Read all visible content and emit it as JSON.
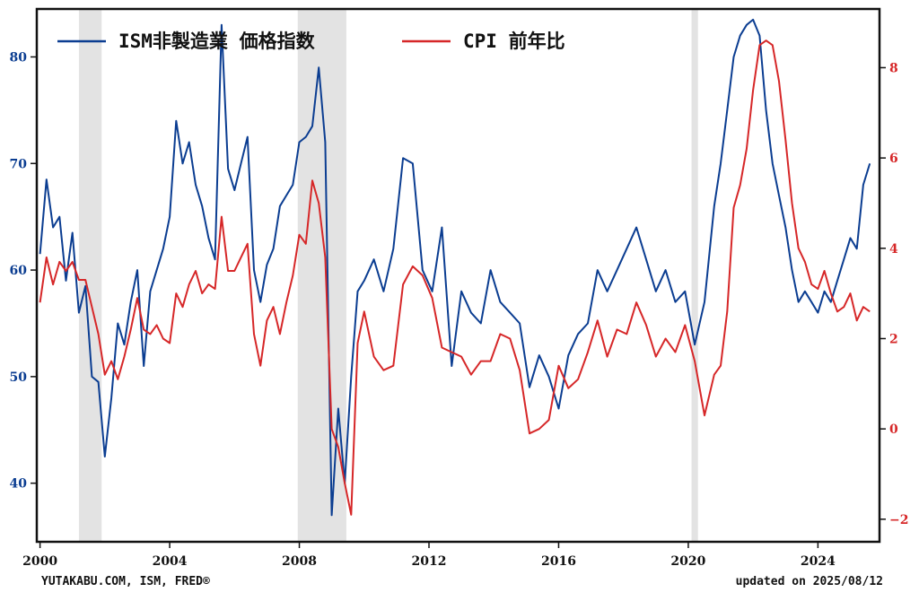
{
  "chart_data": {
    "type": "line",
    "title": "",
    "xlabel": "",
    "ylabel": "",
    "xlim": [
      1999.9,
      2025.9
    ],
    "x_ticks": [
      2000,
      2004,
      2008,
      2012,
      2016,
      2020,
      2024
    ],
    "y_left_lim": [
      34.5,
      84.5
    ],
    "y_left_ticks": [
      40,
      50,
      60,
      70,
      80
    ],
    "y_right_lim": [
      -2.5,
      9.3
    ],
    "y_right_ticks": [
      -2,
      0,
      2,
      4,
      6,
      8
    ],
    "grid": false,
    "legend_position": "top-left",
    "recessions": [
      [
        2001.2,
        2001.9
      ],
      [
        2007.95,
        2009.45
      ],
      [
        2020.1,
        2020.3
      ]
    ],
    "series": [
      {
        "name": "ISM非製造業 価格指数",
        "axis": "left",
        "color": "#0b3d91",
        "x": [
          2000.0,
          2000.2,
          2000.4,
          2000.6,
          2000.8,
          2001.0,
          2001.2,
          2001.4,
          2001.6,
          2001.8,
          2002.0,
          2002.2,
          2002.4,
          2002.6,
          2002.8,
          2003.0,
          2003.2,
          2003.4,
          2003.6,
          2003.8,
          2004.0,
          2004.2,
          2004.4,
          2004.6,
          2004.8,
          2005.0,
          2005.2,
          2005.4,
          2005.6,
          2005.8,
          2006.0,
          2006.2,
          2006.4,
          2006.6,
          2006.8,
          2007.0,
          2007.2,
          2007.4,
          2007.6,
          2007.8,
          2008.0,
          2008.2,
          2008.4,
          2008.6,
          2008.8,
          2009.0,
          2009.2,
          2009.4,
          2009.6,
          2009.8,
          2010.0,
          2010.3,
          2010.6,
          2010.9,
          2011.2,
          2011.5,
          2011.8,
          2012.1,
          2012.4,
          2012.7,
          2013.0,
          2013.3,
          2013.6,
          2013.9,
          2014.2,
          2014.5,
          2014.8,
          2015.1,
          2015.4,
          2015.7,
          2016.0,
          2016.3,
          2016.6,
          2016.9,
          2017.2,
          2017.5,
          2017.8,
          2018.1,
          2018.4,
          2018.7,
          2019.0,
          2019.3,
          2019.6,
          2019.9,
          2020.2,
          2020.5,
          2020.8,
          2021.0,
          2021.2,
          2021.4,
          2021.6,
          2021.8,
          2022.0,
          2022.2,
          2022.4,
          2022.6,
          2022.8,
          2023.0,
          2023.2,
          2023.4,
          2023.6,
          2023.8,
          2024.0,
          2024.2,
          2024.4,
          2024.6,
          2024.8,
          2025.0,
          2025.2,
          2025.4,
          2025.6
        ],
        "values": [
          61.5,
          68.5,
          64.0,
          65.0,
          59.0,
          63.5,
          56.0,
          58.5,
          50.0,
          49.5,
          42.5,
          48.0,
          55.0,
          53.0,
          57.0,
          60.0,
          51.0,
          58.0,
          60.0,
          62.0,
          65.0,
          74.0,
          70.0,
          72.0,
          68.0,
          66.0,
          63.0,
          61.0,
          83.0,
          69.5,
          67.5,
          70.0,
          72.5,
          60.0,
          57.0,
          60.5,
          62.0,
          66.0,
          67.0,
          68.0,
          72.0,
          72.5,
          73.5,
          79.0,
          72.0,
          37.0,
          47.0,
          40.0,
          50.0,
          58.0,
          59.0,
          61.0,
          58.0,
          62.0,
          70.5,
          70.0,
          60.0,
          58.0,
          64.0,
          51.0,
          58.0,
          56.0,
          55.0,
          60.0,
          57.0,
          56.0,
          55.0,
          49.0,
          52.0,
          50.0,
          47.0,
          52.0,
          54.0,
          55.0,
          60.0,
          58.0,
          60.0,
          62.0,
          64.0,
          61.0,
          58.0,
          60.0,
          57.0,
          58.0,
          53.0,
          57.0,
          66.0,
          70.0,
          75.0,
          80.0,
          82.0,
          83.0,
          83.5,
          82.0,
          75.0,
          70.0,
          67.0,
          64.0,
          60.0,
          57.0,
          58.0,
          57.0,
          56.0,
          58.0,
          57.0,
          59.0,
          61.0,
          63.0,
          62.0,
          68.0,
          70.0
        ]
      },
      {
        "name": "CPI 前年比",
        "axis": "right",
        "color": "#d62728",
        "x": [
          2000.0,
          2000.2,
          2000.4,
          2000.6,
          2000.8,
          2001.0,
          2001.2,
          2001.4,
          2001.6,
          2001.8,
          2002.0,
          2002.2,
          2002.4,
          2002.6,
          2002.8,
          2003.0,
          2003.2,
          2003.4,
          2003.6,
          2003.8,
          2004.0,
          2004.2,
          2004.4,
          2004.6,
          2004.8,
          2005.0,
          2005.2,
          2005.4,
          2005.6,
          2005.8,
          2006.0,
          2006.2,
          2006.4,
          2006.6,
          2006.8,
          2007.0,
          2007.2,
          2007.4,
          2007.6,
          2007.8,
          2008.0,
          2008.2,
          2008.4,
          2008.6,
          2008.8,
          2009.0,
          2009.2,
          2009.4,
          2009.6,
          2009.8,
          2010.0,
          2010.3,
          2010.6,
          2010.9,
          2011.2,
          2011.5,
          2011.8,
          2012.1,
          2012.4,
          2012.7,
          2013.0,
          2013.3,
          2013.6,
          2013.9,
          2014.2,
          2014.5,
          2014.8,
          2015.1,
          2015.4,
          2015.7,
          2016.0,
          2016.3,
          2016.6,
          2016.9,
          2017.2,
          2017.5,
          2017.8,
          2018.1,
          2018.4,
          2018.7,
          2019.0,
          2019.3,
          2019.6,
          2019.9,
          2020.2,
          2020.5,
          2020.8,
          2021.0,
          2021.2,
          2021.4,
          2021.6,
          2021.8,
          2022.0,
          2022.2,
          2022.4,
          2022.6,
          2022.8,
          2023.0,
          2023.2,
          2023.4,
          2023.6,
          2023.8,
          2024.0,
          2024.2,
          2024.4,
          2024.6,
          2024.8,
          2025.0,
          2025.2,
          2025.4,
          2025.6
        ],
        "values": [
          2.8,
          3.8,
          3.2,
          3.7,
          3.5,
          3.7,
          3.3,
          3.3,
          2.7,
          2.1,
          1.2,
          1.5,
          1.1,
          1.6,
          2.2,
          2.9,
          2.2,
          2.1,
          2.3,
          2.0,
          1.9,
          3.0,
          2.7,
          3.2,
          3.5,
          3.0,
          3.2,
          3.1,
          4.7,
          3.5,
          3.5,
          3.8,
          4.1,
          2.1,
          1.4,
          2.4,
          2.7,
          2.1,
          2.8,
          3.4,
          4.3,
          4.1,
          5.5,
          5.0,
          3.8,
          0.0,
          -0.4,
          -1.2,
          -1.9,
          1.9,
          2.6,
          1.6,
          1.3,
          1.4,
          3.2,
          3.6,
          3.4,
          2.9,
          1.8,
          1.7,
          1.6,
          1.2,
          1.5,
          1.5,
          2.1,
          2.0,
          1.3,
          -0.1,
          0.0,
          0.2,
          1.4,
          0.9,
          1.1,
          1.7,
          2.4,
          1.6,
          2.2,
          2.1,
          2.8,
          2.3,
          1.6,
          2.0,
          1.7,
          2.3,
          1.5,
          0.3,
          1.2,
          1.4,
          2.6,
          4.9,
          5.4,
          6.2,
          7.5,
          8.5,
          8.6,
          8.5,
          7.7,
          6.4,
          5.0,
          4.0,
          3.7,
          3.2,
          3.1,
          3.5,
          3.0,
          2.6,
          2.7,
          3.0,
          2.4,
          2.7,
          2.6
        ]
      }
    ]
  },
  "footer": {
    "source": "YUTAKABU.COM, ISM, FRED®",
    "updated": "updated on 2025/08/12"
  },
  "colors": {
    "ism": "#0b3d91",
    "cpi": "#d62728",
    "recession": "#e3e3e3",
    "frame": "#111111"
  }
}
